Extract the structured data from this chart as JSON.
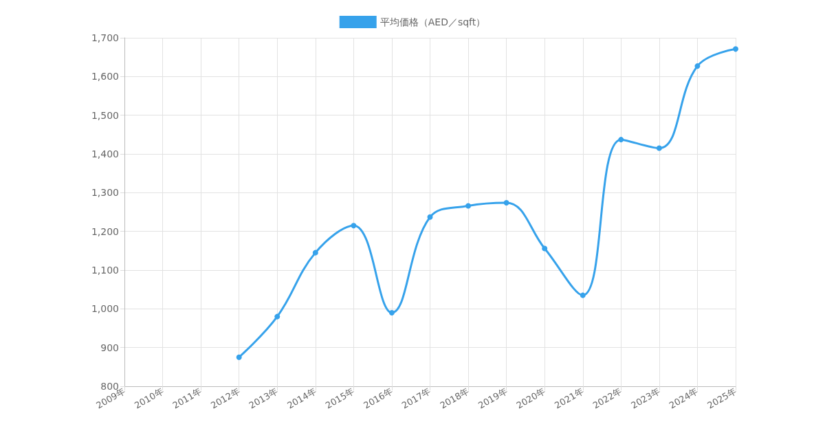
{
  "chart_data": {
    "type": "line",
    "categories": [
      "2009年",
      "2010年",
      "2011年",
      "2012年",
      "2013年",
      "2014年",
      "2015年",
      "2016年",
      "2017年",
      "2018年",
      "2019年",
      "2020年",
      "2021年",
      "2022年",
      "2023年",
      "2024年",
      "2025年"
    ],
    "series": [
      {
        "name": "平均価格（AED／sqft）",
        "color": "#36a2eb",
        "values": [
          null,
          null,
          null,
          875,
          980,
          1145,
          1215,
          990,
          1237,
          1266,
          1274,
          1156,
          1035,
          1437,
          1415,
          1627,
          1671
        ]
      }
    ],
    "ylim": [
      800,
      1700
    ],
    "yticks": [
      {
        "value": 800,
        "label": "800"
      },
      {
        "value": 900,
        "label": "900"
      },
      {
        "value": 1000,
        "label": "1,000"
      },
      {
        "value": 1100,
        "label": "1,100"
      },
      {
        "value": 1200,
        "label": "1,200"
      },
      {
        "value": 1300,
        "label": "1,300"
      },
      {
        "value": 1400,
        "label": "1,400"
      },
      {
        "value": 1500,
        "label": "1,500"
      },
      {
        "value": 1600,
        "label": "1,600"
      },
      {
        "value": 1700,
        "label": "1,700"
      }
    ],
    "grid": true,
    "legend": "top",
    "marker": "circle",
    "line_style": "solid"
  }
}
